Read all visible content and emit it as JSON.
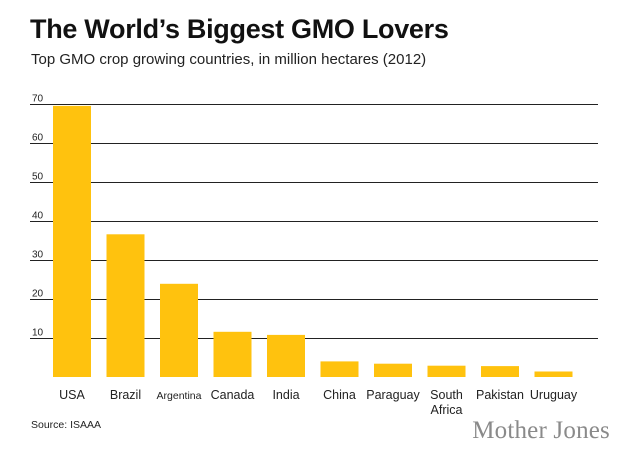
{
  "chart_data": {
    "type": "bar",
    "title": "The World’s Biggest GMO Lovers",
    "subtitle": "Top GMO crop growing countries, in million hectares (2012)",
    "categories": [
      "USA",
      "Brazil",
      "Argentina",
      "Canada",
      "India",
      "China",
      "Paraguay",
      "South Africa",
      "Pakistan",
      "Uruguay"
    ],
    "category_label_lines": [
      [
        "USA"
      ],
      [
        "Brazil"
      ],
      [
        "Argentina"
      ],
      [
        "Canada"
      ],
      [
        "India"
      ],
      [
        "China"
      ],
      [
        "Paraguay"
      ],
      [
        "South",
        "Africa"
      ],
      [
        "Pakistan"
      ],
      [
        "Uruguay"
      ]
    ],
    "values": [
      69.5,
      36.6,
      23.9,
      11.6,
      10.8,
      4.0,
      3.4,
      2.9,
      2.8,
      1.4
    ],
    "ylim": [
      0,
      70
    ],
    "yticks": [
      10,
      20,
      30,
      40,
      50,
      60,
      70
    ],
    "xlabel": "",
    "ylabel": "",
    "grid": true,
    "bar_color": "#FFC20E",
    "grid_color": "#222222"
  },
  "source": "Source: ISAAA",
  "brand": "Mother Jones"
}
